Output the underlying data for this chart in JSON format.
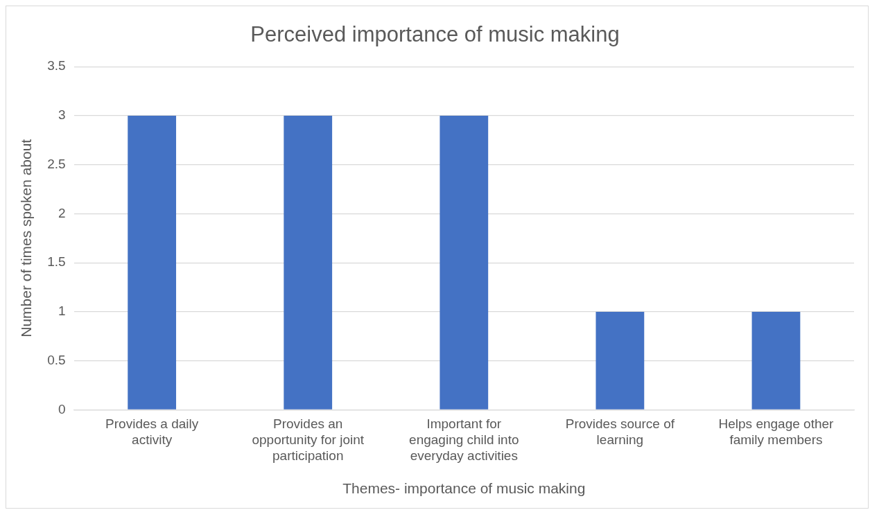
{
  "chart_data": {
    "type": "bar",
    "title": "Perceived importance of music making",
    "xlabel": "Themes- importance of music making",
    "ylabel": "Number of times spoken about",
    "categories": [
      "Provides a daily activity",
      "Provides an opportunity for joint participation",
      "Important for engaging child into everyday activities",
      "Provides source of learning",
      "Helps engage other family members"
    ],
    "values": [
      3,
      3,
      3,
      1,
      1
    ],
    "color": "#4472c4",
    "ylim": [
      0,
      3.5
    ],
    "yticks": [
      0,
      0.5,
      1,
      1.5,
      2,
      2.5,
      3,
      3.5
    ],
    "grid": "y",
    "legend": false
  }
}
